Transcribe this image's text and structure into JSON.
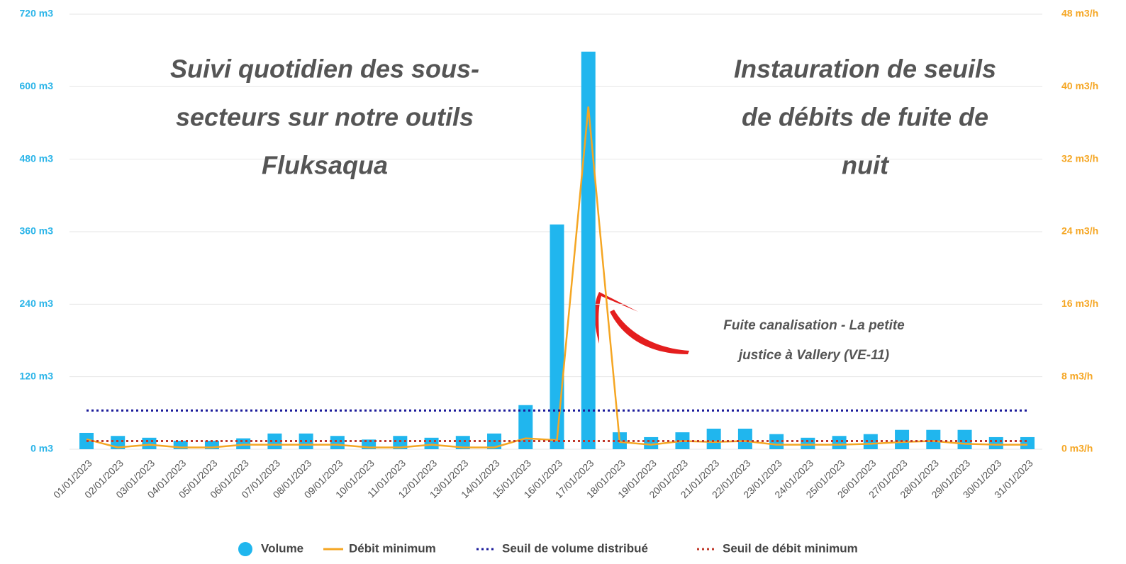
{
  "chart_data": {
    "type": "bar",
    "annotations": [
      {
        "lines": [
          "Suivi quotidien des sous-",
          "secteurs sur notre outils",
          "Fluksaqua"
        ]
      },
      {
        "lines": [
          "Instauration de seuils",
          "de débits de fuite de",
          "nuit"
        ]
      },
      {
        "lines": [
          "Fuite canalisation - La petite",
          "justice à Vallery (VE-11)"
        ]
      }
    ],
    "categories": [
      "01/01/2023",
      "02/01/2023",
      "03/01/2023",
      "04/01/2023",
      "05/01/2023",
      "06/01/2023",
      "07/01/2023",
      "08/01/2023",
      "09/01/2023",
      "10/01/2023",
      "11/01/2023",
      "12/01/2023",
      "13/01/2023",
      "14/01/2023",
      "15/01/2023",
      "16/01/2023",
      "17/01/2023",
      "18/01/2023",
      "19/01/2023",
      "20/01/2023",
      "21/01/2023",
      "22/01/2023",
      "23/01/2023",
      "24/01/2023",
      "25/01/2023",
      "26/01/2023",
      "27/01/2023",
      "28/01/2023",
      "29/01/2023",
      "30/01/2023",
      "31/01/2023"
    ],
    "series": [
      {
        "name": "Volume",
        "type": "bar",
        "color": "#20b6ee",
        "values": [
          27,
          22,
          19,
          14,
          14,
          18,
          26,
          26,
          22,
          16,
          22,
          19,
          22,
          26,
          73,
          372,
          658,
          28,
          20,
          28,
          34,
          34,
          25,
          19,
          22,
          25,
          32,
          32,
          32,
          20,
          20
        ]
      },
      {
        "name": "Débit minimum",
        "type": "line",
        "axis": "y2",
        "color": "#f5a623",
        "values": [
          1.1,
          0.2,
          0.5,
          0.2,
          0.2,
          0.5,
          0.5,
          0.5,
          0.5,
          0.2,
          0.2,
          0.5,
          0.2,
          0.2,
          1.2,
          1.0,
          37.8,
          0.8,
          0.5,
          0.9,
          0.8,
          0.9,
          0.5,
          0.5,
          0.5,
          0.6,
          0.8,
          0.9,
          0.6,
          0.5,
          0.5
        ]
      },
      {
        "name": "Seuil de volume distribué",
        "type": "line",
        "dash": "dotted",
        "color": "#1a1a9a",
        "values": [
          64,
          64,
          64,
          64,
          64,
          64,
          64,
          64,
          64,
          64,
          64,
          64,
          64,
          64,
          64,
          64,
          64,
          64,
          64,
          64,
          64,
          64,
          64,
          64,
          64,
          64,
          64,
          64,
          64,
          64,
          64
        ]
      },
      {
        "name": "Seuil de débit minimum",
        "type": "line",
        "dash": "dotted",
        "axis": "y2",
        "color": "#c0392b",
        "values": [
          0.9,
          0.9,
          0.9,
          0.9,
          0.9,
          0.9,
          0.9,
          0.9,
          0.9,
          0.9,
          0.9,
          0.9,
          0.9,
          0.9,
          0.9,
          0.9,
          0.9,
          0.9,
          0.9,
          0.9,
          0.9,
          0.9,
          0.9,
          0.9,
          0.9,
          0.9,
          0.9,
          0.9,
          0.9,
          0.9,
          0.9
        ]
      }
    ],
    "ylim": [
      0,
      720
    ],
    "yticks": [
      {
        "value": 0,
        "label": "0 m3"
      },
      {
        "value": 120,
        "label": "120 m3"
      },
      {
        "value": 240,
        "label": "240 m3"
      },
      {
        "value": 360,
        "label": "360 m3"
      },
      {
        "value": 480,
        "label": "480 m3"
      },
      {
        "value": 600,
        "label": "600 m3"
      },
      {
        "value": 720,
        "label": "720 m3"
      }
    ],
    "y2lim": [
      0,
      48
    ],
    "y2ticks": [
      {
        "value": 0,
        "label": "0 m3/h"
      },
      {
        "value": 8,
        "label": "8 m3/h"
      },
      {
        "value": 16,
        "label": "16 m3/h"
      },
      {
        "value": 24,
        "label": "24 m3/h"
      },
      {
        "value": 32,
        "label": "32 m3/h"
      },
      {
        "value": 40,
        "label": "40 m3/h"
      },
      {
        "value": 48,
        "label": "48 m3/h"
      }
    ],
    "ycolor": "#2ab4e8",
    "y2color": "#f5a623",
    "grid": true,
    "legend": "bottom"
  }
}
